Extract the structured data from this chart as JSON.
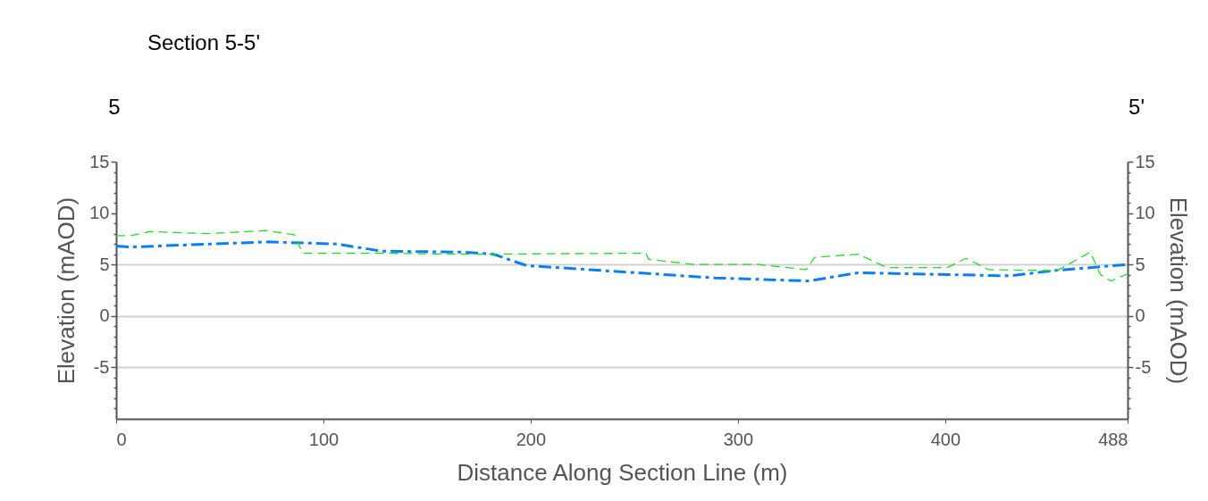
{
  "chart_data": {
    "type": "line",
    "title": "Section 5-5'",
    "annotations": [
      "5",
      "5'"
    ],
    "xlabel": "Distance Along Section Line (m)",
    "ylabel": "Elevation (mAOD)",
    "y2label": "Elevation (mAOD)",
    "xlim": [
      0,
      488
    ],
    "xticks": [
      0,
      100,
      200,
      300,
      400,
      488
    ],
    "ylim": [
      -10,
      15
    ],
    "yticks": [
      {
        "value": -9,
        "label": null
      },
      {
        "value": -8,
        "label": null
      },
      {
        "value": -7,
        "label": null
      },
      {
        "value": -6,
        "label": null
      },
      -5,
      {
        "value": -4,
        "label": null
      },
      {
        "value": -3,
        "label": null
      },
      {
        "value": -2,
        "label": null
      },
      {
        "value": -1,
        "label": null
      },
      0,
      {
        "value": 1,
        "label": null
      },
      {
        "value": 2,
        "label": null
      },
      {
        "value": 3,
        "label": null
      },
      {
        "value": 4,
        "label": null
      },
      5,
      {
        "value": 6,
        "label": null
      },
      {
        "value": 7,
        "label": null
      },
      {
        "value": 8,
        "label": null
      },
      {
        "value": 9,
        "label": null
      },
      10,
      {
        "value": 11,
        "label": null
      },
      {
        "value": 12,
        "label": null
      },
      {
        "value": 13,
        "label": null
      },
      {
        "value": 14,
        "label": null
      },
      15
    ],
    "y2lim": [
      -10,
      15
    ],
    "y2ticks": [
      {
        "value": -9,
        "label": null
      },
      {
        "value": -8,
        "label": null
      },
      {
        "value": -7,
        "label": null
      },
      {
        "value": -6,
        "label": null
      },
      -5,
      {
        "value": -4,
        "label": null
      },
      {
        "value": -3,
        "label": null
      },
      {
        "value": -2,
        "label": null
      },
      {
        "value": -1,
        "label": null
      },
      0,
      {
        "value": 1,
        "label": null
      },
      {
        "value": 2,
        "label": null
      },
      {
        "value": 3,
        "label": null
      },
      {
        "value": 4,
        "label": null
      },
      5,
      {
        "value": 6,
        "label": null
      },
      {
        "value": 7,
        "label": null
      },
      {
        "value": 8,
        "label": null
      },
      {
        "value": 9,
        "label": null
      },
      10,
      {
        "value": 11,
        "label": null
      },
      {
        "value": 12,
        "label": null
      },
      {
        "value": 13,
        "label": null
      },
      {
        "value": 14,
        "label": null
      },
      15
    ],
    "grid": "y",
    "line_style": "dashed",
    "series": [
      {
        "color": "#0a7ff5",
        "x": [
          0,
          7,
          73,
          106.5,
          128,
          168,
          182,
          198,
          289,
          334,
          358,
          431,
          452,
          488
        ],
        "values": [
          6.8,
          6.7,
          7.2,
          7.0,
          6.3,
          6.2,
          6.0,
          4.9,
          3.7,
          3.4,
          4.2,
          3.9,
          4.4,
          5.0
        ]
      },
      {
        "color": "#22dd22",
        "axis": "y2",
        "x": [
          0,
          7,
          16,
          44,
          72,
          86,
          90,
          128,
          168,
          255.6,
          257,
          279,
          310,
          333,
          337,
          358,
          372,
          401,
          410,
          421,
          454,
          470,
          475,
          480,
          488
        ],
        "values": [
          7.8,
          7.8,
          8.2,
          8.0,
          8.3,
          7.9,
          6.1,
          6.1,
          6.0,
          6.1,
          5.5,
          5.0,
          5.0,
          4.5,
          5.7,
          6.0,
          4.7,
          4.7,
          5.6,
          4.5,
          4.4,
          6.2,
          4.0,
          3.4,
          4.1
        ]
      }
    ]
  }
}
